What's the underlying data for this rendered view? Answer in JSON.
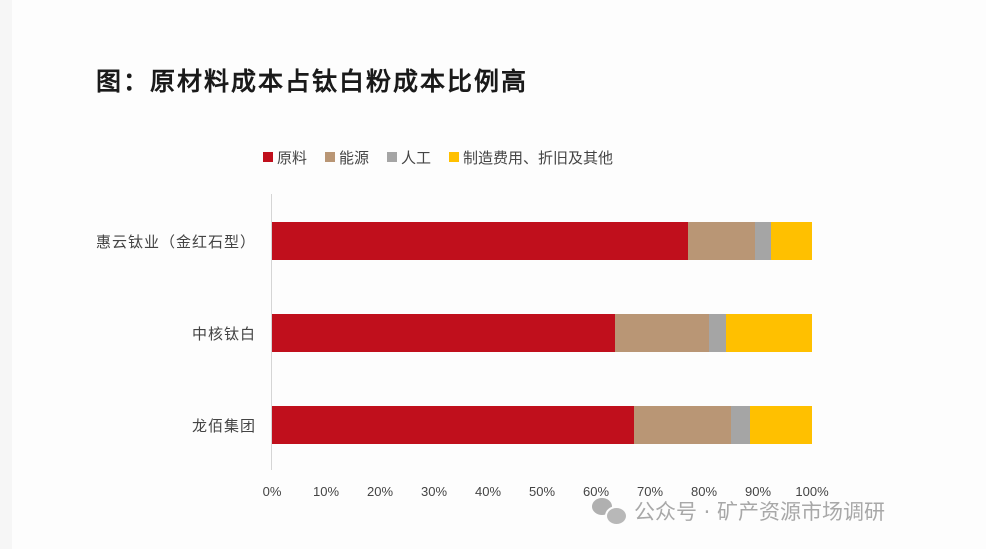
{
  "title": "图：原材料成本占钛白粉成本比例高",
  "legend": [
    {
      "label": "原料",
      "color": "#C00F1C"
    },
    {
      "label": "能源",
      "color": "#B99675"
    },
    {
      "label": "人工",
      "color": "#A5A5A5"
    },
    {
      "label": "制造费用、折旧及其他",
      "color": "#FFC000"
    }
  ],
  "categories": [
    "惠云钛业（金红石型）",
    "中核钛白",
    "龙佰集团"
  ],
  "ticks": [
    "0%",
    "10%",
    "20%",
    "30%",
    "40%",
    "50%",
    "60%",
    "70%",
    "80%",
    "90%",
    "100%"
  ],
  "watermark": "公众号 · 矿产资源市场调研",
  "chart_data": {
    "type": "bar",
    "orientation": "horizontal",
    "stacked": true,
    "percent_stacked": true,
    "title": "图：原材料成本占钛白粉成本比例高",
    "categories": [
      "惠云钛业（金红石型）",
      "中核钛白",
      "龙佰集团"
    ],
    "series": [
      {
        "name": "原料",
        "color": "#C00F1C",
        "values": [
          77,
          63.5,
          67
        ]
      },
      {
        "name": "能源",
        "color": "#B99675",
        "values": [
          12.5,
          17.5,
          18
        ]
      },
      {
        "name": "人工",
        "color": "#A5A5A5",
        "values": [
          3,
          3,
          3.5
        ]
      },
      {
        "name": "制造费用、折旧及其他",
        "color": "#FFC000",
        "values": [
          7.5,
          16,
          11.5
        ]
      }
    ],
    "xlabel": "",
    "ylabel": "",
    "xlim": [
      0,
      100
    ],
    "x_tick_labels": [
      "0%",
      "10%",
      "20%",
      "30%",
      "40%",
      "50%",
      "60%",
      "70%",
      "80%",
      "90%",
      "100%"
    ],
    "legend_position": "top",
    "grid": false
  }
}
